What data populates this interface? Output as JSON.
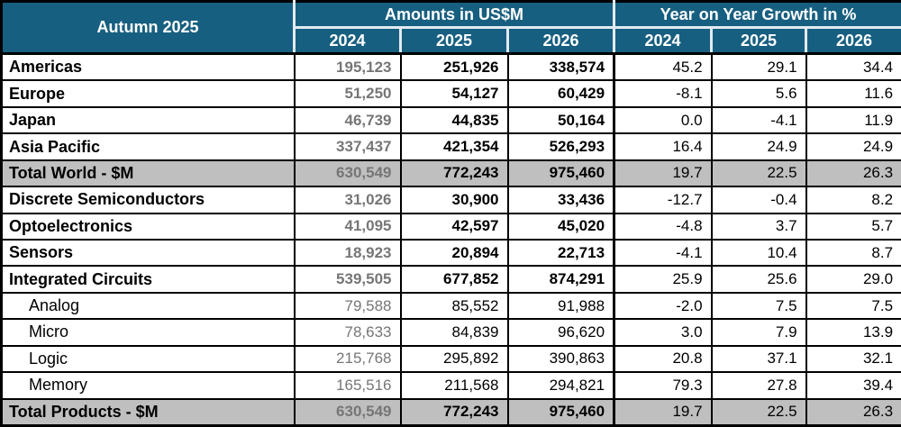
{
  "table": {
    "title": "Autumn 2025",
    "group_headers": {
      "amounts": "Amounts in US$M",
      "growth": "Year on Year Growth in %"
    },
    "year_headers": [
      "2024",
      "2025",
      "2026",
      "2024",
      "2025",
      "2026"
    ],
    "rows": [
      {
        "label": "Americas",
        "type": "major",
        "values": [
          "195,123",
          "251,926",
          "338,574",
          "45.2",
          "29.1",
          "34.4"
        ]
      },
      {
        "label": "Europe",
        "type": "major",
        "values": [
          "51,250",
          "54,127",
          "60,429",
          "-8.1",
          "5.6",
          "11.6"
        ]
      },
      {
        "label": "Japan",
        "type": "major",
        "values": [
          "46,739",
          "44,835",
          "50,164",
          "0.0",
          "-4.1",
          "11.9"
        ]
      },
      {
        "label": "Asia Pacific",
        "type": "major",
        "values": [
          "337,437",
          "421,354",
          "526,293",
          "16.4",
          "24.9",
          "24.9"
        ]
      },
      {
        "label": "Total World - $M",
        "type": "total",
        "values": [
          "630,549",
          "772,243",
          "975,460",
          "19.7",
          "22.5",
          "26.3"
        ]
      },
      {
        "label": "Discrete Semiconductors",
        "type": "major",
        "values": [
          "31,026",
          "30,900",
          "33,436",
          "-12.7",
          "-0.4",
          "8.2"
        ]
      },
      {
        "label": "Optoelectronics",
        "type": "major",
        "values": [
          "41,095",
          "42,597",
          "45,020",
          "-4.8",
          "3.7",
          "5.7"
        ]
      },
      {
        "label": "Sensors",
        "type": "major",
        "values": [
          "18,923",
          "20,894",
          "22,713",
          "-4.1",
          "10.4",
          "8.7"
        ]
      },
      {
        "label": "Integrated Circuits",
        "type": "major",
        "values": [
          "539,505",
          "677,852",
          "874,291",
          "25.9",
          "25.6",
          "29.0"
        ]
      },
      {
        "label": "Analog",
        "type": "sub",
        "values": [
          "79,588",
          "85,552",
          "91,988",
          "-2.0",
          "7.5",
          "7.5"
        ]
      },
      {
        "label": "Micro",
        "type": "sub",
        "values": [
          "78,633",
          "84,839",
          "96,620",
          "3.0",
          "7.9",
          "13.9"
        ]
      },
      {
        "label": "Logic",
        "type": "sub",
        "values": [
          "215,768",
          "295,892",
          "390,863",
          "20.8",
          "37.1",
          "32.1"
        ]
      },
      {
        "label": "Memory",
        "type": "sub",
        "values": [
          "165,516",
          "211,568",
          "294,821",
          "79.3",
          "27.8",
          "39.4"
        ]
      },
      {
        "label": "Total Products - $M",
        "type": "total",
        "values": [
          "630,549",
          "772,243",
          "975,460",
          "19.7",
          "22.5",
          "26.3"
        ]
      }
    ]
  },
  "colors": {
    "header_bg": "#175f80",
    "header_text": "#ffffff",
    "total_row_bg": "#bfbfbf",
    "muted_2024_text": "#767676",
    "border": "#000000"
  },
  "chart_data": {
    "type": "table",
    "title": "Autumn 2025",
    "column_groups": [
      {
        "label": "Amounts in US$M",
        "columns": [
          "2024",
          "2025",
          "2026"
        ]
      },
      {
        "label": "Year on Year Growth in %",
        "columns": [
          "2024",
          "2025",
          "2026"
        ]
      }
    ],
    "rows": [
      {
        "label": "Americas",
        "amounts_usdm": [
          195123,
          251926,
          338574
        ],
        "yoy_growth_pct": [
          45.2,
          29.1,
          34.4
        ]
      },
      {
        "label": "Europe",
        "amounts_usdm": [
          51250,
          54127,
          60429
        ],
        "yoy_growth_pct": [
          -8.1,
          5.6,
          11.6
        ]
      },
      {
        "label": "Japan",
        "amounts_usdm": [
          46739,
          44835,
          50164
        ],
        "yoy_growth_pct": [
          0.0,
          -4.1,
          11.9
        ]
      },
      {
        "label": "Asia Pacific",
        "amounts_usdm": [
          337437,
          421354,
          526293
        ],
        "yoy_growth_pct": [
          16.4,
          24.9,
          24.9
        ]
      },
      {
        "label": "Total World - $M",
        "amounts_usdm": [
          630549,
          772243,
          975460
        ],
        "yoy_growth_pct": [
          19.7,
          22.5,
          26.3
        ]
      },
      {
        "label": "Discrete Semiconductors",
        "amounts_usdm": [
          31026,
          30900,
          33436
        ],
        "yoy_growth_pct": [
          -12.7,
          -0.4,
          8.2
        ]
      },
      {
        "label": "Optoelectronics",
        "amounts_usdm": [
          41095,
          42597,
          45020
        ],
        "yoy_growth_pct": [
          -4.8,
          3.7,
          5.7
        ]
      },
      {
        "label": "Sensors",
        "amounts_usdm": [
          18923,
          20894,
          22713
        ],
        "yoy_growth_pct": [
          -4.1,
          10.4,
          8.7
        ]
      },
      {
        "label": "Integrated Circuits",
        "amounts_usdm": [
          539505,
          677852,
          874291
        ],
        "yoy_growth_pct": [
          25.9,
          25.6,
          29.0
        ]
      },
      {
        "label": "Analog",
        "amounts_usdm": [
          79588,
          85552,
          91988
        ],
        "yoy_growth_pct": [
          -2.0,
          7.5,
          7.5
        ]
      },
      {
        "label": "Micro",
        "amounts_usdm": [
          78633,
          84839,
          96620
        ],
        "yoy_growth_pct": [
          3.0,
          7.9,
          13.9
        ]
      },
      {
        "label": "Logic",
        "amounts_usdm": [
          215768,
          295892,
          390863
        ],
        "yoy_growth_pct": [
          20.8,
          37.1,
          32.1
        ]
      },
      {
        "label": "Memory",
        "amounts_usdm": [
          165516,
          211568,
          294821
        ],
        "yoy_growth_pct": [
          79.3,
          27.8,
          39.4
        ]
      },
      {
        "label": "Total Products - $M",
        "amounts_usdm": [
          630549,
          772243,
          975460
        ],
        "yoy_growth_pct": [
          19.7,
          22.5,
          26.3
        ]
      }
    ]
  }
}
